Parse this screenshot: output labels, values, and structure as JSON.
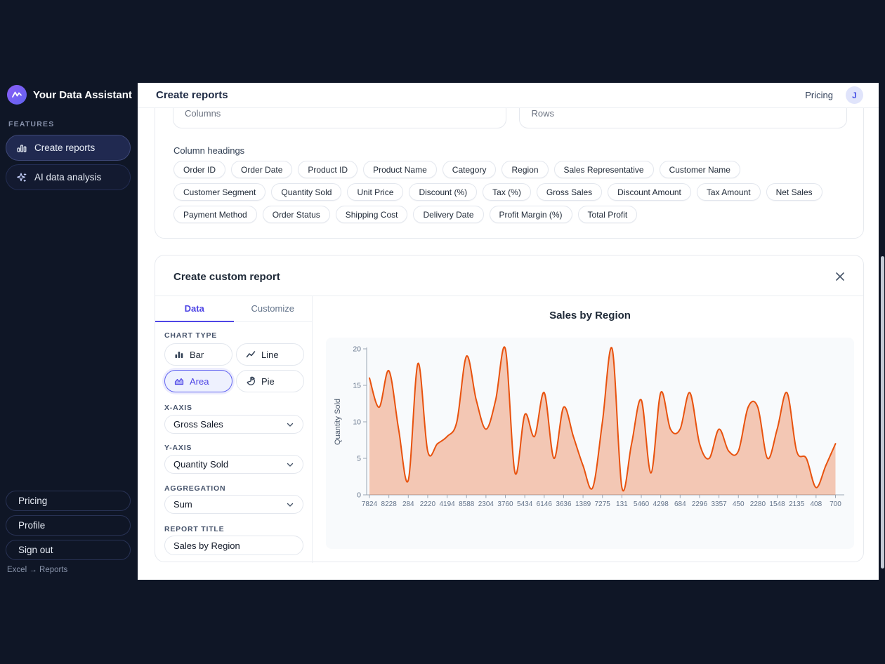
{
  "app": {
    "name": "Your Data Assistant",
    "breadcrumb": "Excel → Reports"
  },
  "sidebar": {
    "section_label": "FEATURES",
    "items": [
      {
        "label": "Create reports",
        "active": true
      },
      {
        "label": "AI data analysis",
        "active": false
      }
    ],
    "footer_items": [
      {
        "label": "Pricing"
      },
      {
        "label": "Profile"
      },
      {
        "label": "Sign out"
      }
    ]
  },
  "header": {
    "title": "Create reports",
    "pricing_label": "Pricing",
    "avatar_initial": "J"
  },
  "fields_card": {
    "columns_placeholder": "Columns",
    "rows_placeholder": "Rows",
    "column_headings_label": "Column headings",
    "chips": [
      "Order ID",
      "Order Date",
      "Product ID",
      "Product Name",
      "Category",
      "Region",
      "Sales Representative",
      "Customer Name",
      "Customer Segment",
      "Quantity Sold",
      "Unit Price",
      "Discount (%)",
      "Tax (%)",
      "Gross Sales",
      "Discount Amount",
      "Tax Amount",
      "Net Sales",
      "Payment Method",
      "Order Status",
      "Shipping Cost",
      "Delivery Date",
      "Profit Margin (%)",
      "Total Profit"
    ]
  },
  "report_builder": {
    "title": "Create custom report",
    "tabs": [
      {
        "label": "Data",
        "active": true
      },
      {
        "label": "Customize",
        "active": false
      }
    ],
    "chart_type_label": "CHART TYPE",
    "chart_types": [
      {
        "label": "Bar",
        "selected": false
      },
      {
        "label": "Line",
        "selected": false
      },
      {
        "label": "Area",
        "selected": true
      },
      {
        "label": "Pie",
        "selected": false
      }
    ],
    "x_axis_label": "X-AXIS",
    "x_axis_value": "Gross Sales",
    "y_axis_label": "Y-AXIS",
    "y_axis_value": "Quantity Sold",
    "aggregation_label": "AGGREGATION",
    "aggregation_value": "Sum",
    "report_title_label": "REPORT TITLE",
    "report_title_value": "Sales by Region"
  },
  "chart_data": {
    "type": "area",
    "title": "Sales by Region",
    "xlabel": "",
    "ylabel": "Quantity Sold",
    "yticks": [
      0,
      5,
      10,
      15,
      20
    ],
    "ylim": [
      0,
      20
    ],
    "categories": [
      "7824",
      "8228",
      "284",
      "2220",
      "4194",
      "8588",
      "2304",
      "3760",
      "5434",
      "6146",
      "3636",
      "1389",
      "7275",
      "131",
      "5460",
      "4298",
      "684",
      "2296",
      "3357",
      "450",
      "2280",
      "1548",
      "2135",
      "408",
      "700"
    ],
    "x_tick_every": 2,
    "values": [
      16,
      12,
      17,
      9,
      2,
      18,
      6,
      7,
      8,
      10,
      19,
      13,
      9,
      13,
      20,
      3,
      11,
      8,
      14,
      5,
      12,
      8,
      4,
      1,
      10,
      20,
      1,
      7,
      13,
      3,
      14,
      9,
      9,
      14,
      7,
      5,
      9,
      6,
      6,
      12,
      12,
      5,
      9,
      14,
      6,
      5,
      1,
      4,
      7
    ],
    "line_color": "#e8520e",
    "fill_color": "#e8520e",
    "fill_opacity": 0.3,
    "panel_bg": "#f8fafc",
    "axis_color": "#9aa5b3",
    "tick_text_color": "#64748b",
    "grid": false,
    "legend": "none"
  },
  "colors": {
    "accent": "#4f46e5",
    "dark_bg": "#0f1626",
    "selected_chart_type_bg": "#eef1fe",
    "area_stroke": "#e8520e"
  }
}
